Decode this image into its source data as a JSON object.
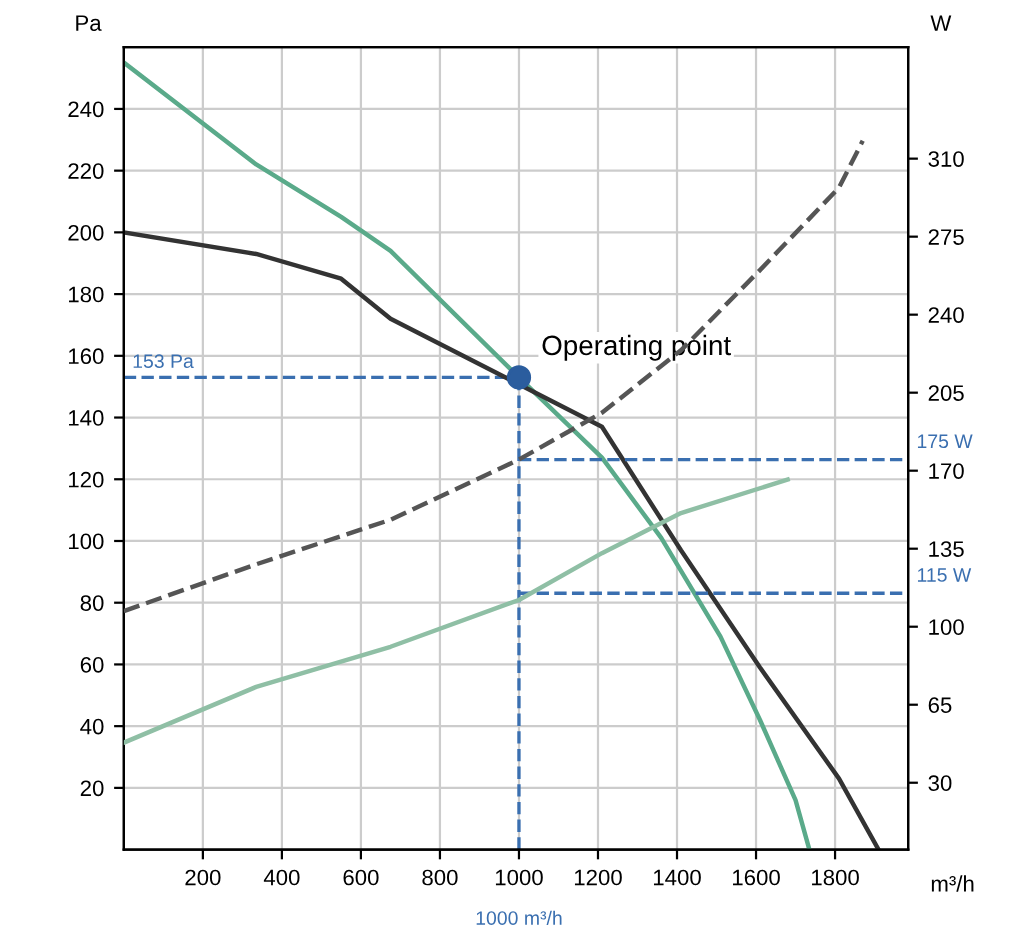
{
  "chart_data": {
    "type": "line",
    "xlabel": "m³/h",
    "ylabel": "Pa",
    "y2label": "W",
    "xlim": [
      0,
      1985
    ],
    "xticks": [
      200,
      400,
      600,
      800,
      1000,
      1200,
      1400,
      1600,
      1800
    ],
    "ylim": [
      0,
      260
    ],
    "yticks": [
      20,
      40,
      60,
      80,
      100,
      120,
      140,
      160,
      180,
      200,
      220,
      240
    ],
    "y2lim": [
      0,
      360
    ],
    "y2ticks": [
      30,
      65,
      100,
      135,
      170,
      205,
      240,
      275,
      310
    ],
    "grid": true,
    "legend": false,
    "series": [
      {
        "color": "#5aaa8a",
        "line_style": "solid",
        "x": [
          0,
          335,
          550,
          675,
          1000,
          1210,
          1360,
          1510,
          1610,
          1700,
          1735
        ],
        "values": [
          255,
          222,
          205,
          194,
          153,
          127,
          101,
          69,
          42,
          16,
          0
        ]
      },
      {
        "color": "#333333",
        "line_style": "solid",
        "x": [
          0,
          335,
          550,
          675,
          1210,
          1410,
          1610,
          1810,
          1910
        ],
        "values": [
          200,
          193,
          185,
          172,
          137,
          97,
          59,
          23,
          0
        ]
      },
      {
        "color": "#555555",
        "line_style": "dashed",
        "axis": "y2",
        "x": [
          0,
          335,
          675,
          1000,
          1210,
          1410,
          1610,
          1810,
          1870
        ],
        "values": [
          107,
          128,
          148,
          175,
          196,
          224,
          260,
          297,
          318
        ]
      },
      {
        "color": "#8fbfa5",
        "line_style": "solid",
        "axis": "y2",
        "x": [
          0,
          335,
          675,
          1000,
          1210,
          1410,
          1680
        ],
        "values": [
          48,
          73,
          91,
          112,
          133,
          151,
          166
        ]
      },
      {
        "type": "scatter",
        "color": "#2b5d9e",
        "marker": "circle",
        "x": [
          1000
        ],
        "values": [
          153
        ]
      }
    ],
    "ref_lines": [
      {
        "axis": "y",
        "value": 153,
        "label": "153 Pa",
        "color": "#3a6fb0",
        "line_style": "dashed"
      },
      {
        "axis": "x",
        "value": 1000,
        "label": "1000 m³/h",
        "color": "#3a6fb0",
        "line_style": "dashed"
      },
      {
        "axis": "y2",
        "value": 175,
        "label": "175 W",
        "color": "#3a6fb0",
        "line_style": "dashed"
      },
      {
        "axis": "y2",
        "value": 115,
        "label": "115 W",
        "color": "#3a6fb0",
        "line_style": "dashed"
      }
    ],
    "annotations": [
      {
        "text": "Operating point",
        "x": 1000,
        "y": 153
      }
    ]
  }
}
